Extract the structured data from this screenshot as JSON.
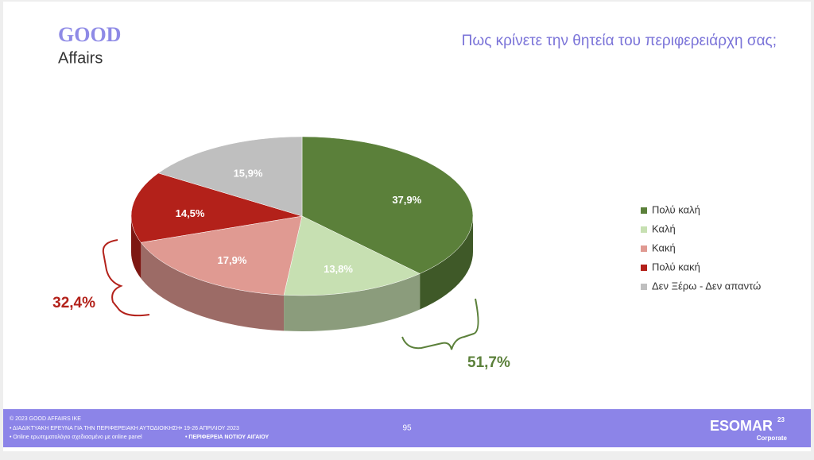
{
  "header": {
    "logo_top": "GOOD",
    "logo_bottom": "Affairs"
  },
  "chart_data": {
    "type": "pie",
    "title": "Πως κρίνετε την θητεία του περιφερειάρχη σας;",
    "categories": [
      "Πολύ καλή",
      "Καλή",
      "Κακή",
      "Πολύ κακή",
      "Δεν Ξέρω - Δεν απαντώ"
    ],
    "values": [
      37.9,
      13.8,
      17.9,
      14.5,
      15.9
    ],
    "value_labels": [
      "37,9%",
      "13,8%",
      "17,9%",
      "14,5%",
      "15,9%"
    ],
    "colors": [
      "#5b803a",
      "#c7e0b2",
      "#e09a92",
      "#b3211a",
      "#bfbfbf"
    ],
    "legend": "right",
    "annotations": [
      "51,7%",
      "32,4%"
    ]
  },
  "footer": {
    "lines": [
      "© 2023 GOOD AFFAIRS IKE",
      "• ΔΙΑΔΙΚΤΥΑΚΗ ΕΡΕΥΝΑ  ΓΙΑ ΤΗΝ ΠΕΡΙΦΕΡΕΙΑΚΗ ΑΥΤΟΔΙΟΙΚΗΣΗ• 19-26 ΑΠΡΙΛΙΟΥ 2023",
      "• Online ερωτηματολόγιο σχεδιασμένο με online panel"
    ],
    "region": "• ΠΕΡΙΦΕΡΕΙΑ ΝΟΤΙΟΥ ΑΙΓΑΙΟΥ",
    "page": "95",
    "brand": "ESOMAR",
    "brand_sup": "23",
    "brand_sub": "Corporate"
  }
}
